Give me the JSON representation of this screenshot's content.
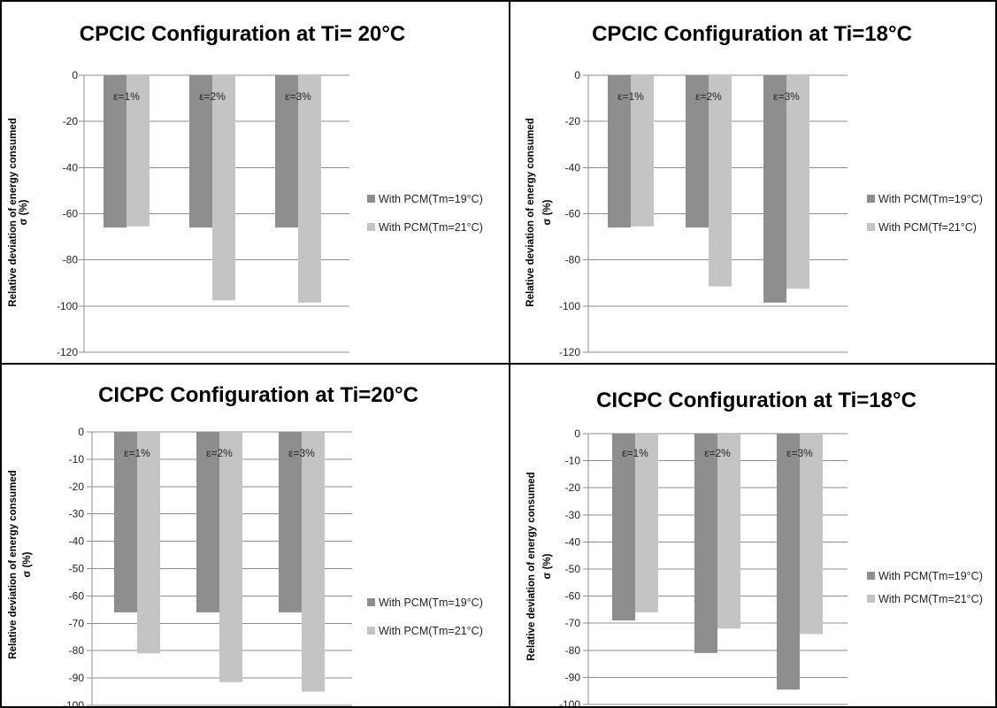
{
  "colors": {
    "series_dark": "#8e8e8e",
    "series_light": "#c4c4c4"
  },
  "chart_data": [
    {
      "type": "bar",
      "title": "CPCIC Configuration at Ti= 20°C",
      "ylabel_line1": "Relative deviation of energy consumed",
      "ylabel_line2": "σ (%)",
      "categories": [
        "ε=1%",
        "ε=2%",
        "ε=3%"
      ],
      "ylim": [
        -120,
        0
      ],
      "yticks": [
        0,
        -20,
        -40,
        -60,
        -80,
        -100,
        -120
      ],
      "grid": true,
      "legend_position": "right",
      "series": [
        {
          "name": "With PCM(Tm=19°C)",
          "values": [
            -66,
            -66,
            -66
          ]
        },
        {
          "name": "With PCM(Tm=21°C)",
          "values": [
            -65.5,
            -97.5,
            -98.5
          ]
        }
      ]
    },
    {
      "type": "bar",
      "title": "CPCIC Configuration at Ti=18°C",
      "ylabel_line1": "Relative deviation of energy consumed",
      "ylabel_line2": "σ (%)",
      "categories": [
        "ε=1%",
        "ε=2%",
        "ε=3%"
      ],
      "ylim": [
        -120,
        0
      ],
      "yticks": [
        0,
        -20,
        -40,
        -60,
        -80,
        -100,
        -120
      ],
      "grid": true,
      "legend_position": "right",
      "series": [
        {
          "name": "With PCM(Tm=19°C)",
          "values": [
            -66,
            -66,
            -98.5
          ]
        },
        {
          "name": "With PCM(Tf=21°C)",
          "values": [
            -65.5,
            -91.5,
            -92.5
          ]
        }
      ]
    },
    {
      "type": "bar",
      "title": "CICPC Configuration at Ti=20°C",
      "ylabel_line1": "Relative deviation of energy consumed",
      "ylabel_line2": "σ (%)",
      "categories": [
        "ε=1%",
        "ε=2%",
        "ε=3%"
      ],
      "ylim": [
        -100,
        0
      ],
      "yticks": [
        0,
        -10,
        -20,
        -30,
        -40,
        -50,
        -60,
        -70,
        -80,
        -90,
        -100
      ],
      "grid": true,
      "legend_position": "right",
      "series": [
        {
          "name": "With PCM(Tm=19°C)",
          "values": [
            -66,
            -66,
            -66
          ]
        },
        {
          "name": "With PCM(Tm=21°C)",
          "values": [
            -81,
            -91.5,
            -95
          ]
        }
      ]
    },
    {
      "type": "bar",
      "title": "CICPC Configuration at Ti=18°C",
      "ylabel_line1": "Relative deviation of energy consumed",
      "ylabel_line2": "σ (%)",
      "categories": [
        "ε=1%",
        "ε=2%",
        "ε=3%"
      ],
      "ylim": [
        -100,
        0
      ],
      "yticks": [
        0,
        -10,
        -20,
        -30,
        -40,
        -50,
        -60,
        -70,
        -80,
        -90,
        -100
      ],
      "grid": true,
      "legend_position": "right",
      "series": [
        {
          "name": "With PCM(Tm=19°C)",
          "values": [
            -69,
            -81,
            -94.5
          ]
        },
        {
          "name": "With PCM(Tm=21°C)",
          "values": [
            -66,
            -72,
            -74
          ]
        }
      ]
    }
  ]
}
